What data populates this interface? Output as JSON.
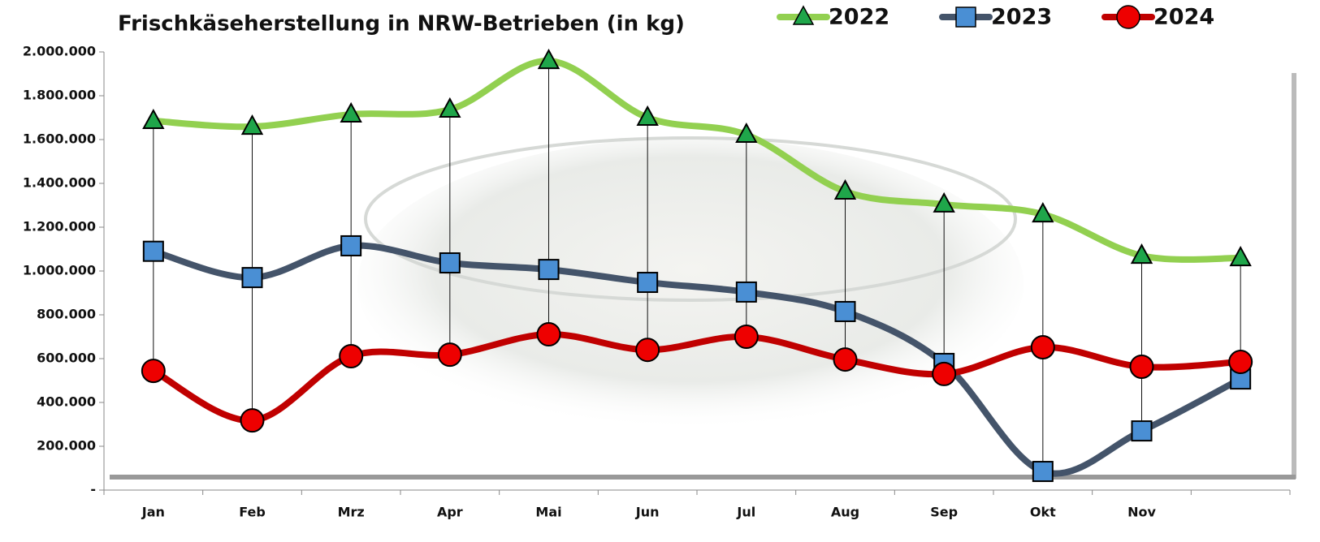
{
  "chart_data": {
    "type": "line",
    "title": "Frischkäseherstellung in NRW-Betrieben (in kg)",
    "categories": [
      "Jan",
      "Feb",
      "Mrz",
      "Apr",
      "Mai",
      "Jun",
      "Jul",
      "Aug",
      "Sep",
      "Okt",
      "Nov",
      null
    ],
    "series": [
      {
        "name": "2022",
        "color": "#92d050",
        "marker": "triangle",
        "marker_color": "#1fa64a",
        "values": [
          1685000,
          1659000,
          1715000,
          1737000,
          1959000,
          1700000,
          1622000,
          1363000,
          1304000,
          1259000,
          1070000,
          1059000
        ]
      },
      {
        "name": "2023",
        "color": "#44546a",
        "marker": "square",
        "marker_color": "#4a8fd4",
        "values": [
          1090000,
          970000,
          1115000,
          1037000,
          1007000,
          948000,
          904000,
          815000,
          578000,
          85000,
          270000,
          507000
        ]
      },
      {
        "name": "2024",
        "color": "#c00000",
        "marker": "circle",
        "marker_color": "#ee0000",
        "values": [
          544000,
          318000,
          611000,
          618000,
          711000,
          640000,
          700000,
          596000,
          530000,
          652000,
          563000,
          585000
        ]
      }
    ],
    "ylim": [
      0,
      2000000
    ],
    "yticks": [
      {
        "value": 0,
        "label": "-"
      },
      {
        "value": 200000,
        "label": "200.000"
      },
      {
        "value": 400000,
        "label": "400.000"
      },
      {
        "value": 600000,
        "label": "600.000"
      },
      {
        "value": 800000,
        "label": "800.000"
      },
      {
        "value": 1000000,
        "label": "1.000.000"
      },
      {
        "value": 1200000,
        "label": "1.200.000"
      },
      {
        "value": 1400000,
        "label": "1.400.000"
      },
      {
        "value": 1600000,
        "label": "1.600.000"
      },
      {
        "value": 1800000,
        "label": "1.800.000"
      },
      {
        "value": 2000000,
        "label": "2.000.000"
      }
    ],
    "hi_lo_lines": true,
    "smooth": true
  }
}
